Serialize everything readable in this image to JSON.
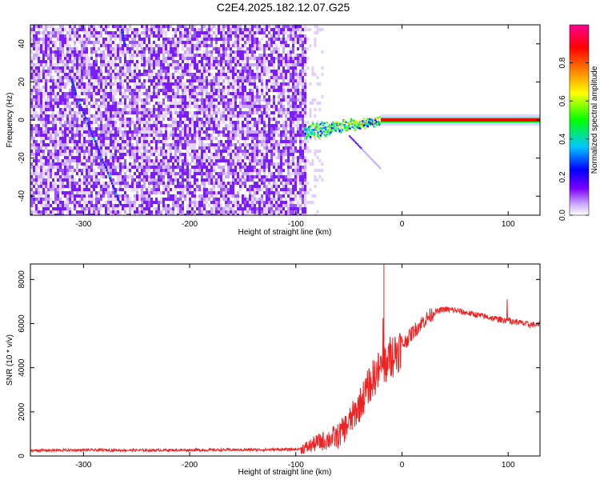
{
  "figure_title": "C2E4.2025.182.12.07.G25",
  "chart_data": [
    {
      "type": "heatmap",
      "title": "C2E4.2025.182.12.07.G25",
      "xlabel": "Height of straight line (km)",
      "ylabel": "Frequency (Hz)",
      "xlim": [
        -350,
        130
      ],
      "ylim": [
        -50,
        50
      ],
      "xticks": [
        -300,
        -200,
        -100,
        0,
        100
      ],
      "yticks": [
        -40,
        -20,
        0,
        20,
        40
      ],
      "colorbar": {
        "label": "Normalized spectral amplitude",
        "range": [
          0,
          1
        ],
        "ticks": [
          "0.0",
          "0.2",
          "0.4",
          "0.6",
          "0.8"
        ],
        "colormap": [
          "#ffffff",
          "#7b00ff",
          "#0000ff",
          "#00c8ff",
          "#00ff00",
          "#ffff00",
          "#ff8000",
          "#ff0000",
          "#ff0090"
        ]
      },
      "regions": [
        {
          "name": "noise",
          "x": [
            -350,
            -92
          ],
          "y": [
            -50,
            50
          ],
          "amplitude": 0.1
        },
        {
          "name": "fading-noise",
          "x": [
            -92,
            -75
          ],
          "y": [
            -50,
            50
          ],
          "amplitude": 0.03
        },
        {
          "name": "signal-onset",
          "x": [
            -92,
            0
          ],
          "y": [
            -6,
            2
          ],
          "amplitude": 0.45
        },
        {
          "name": "signal-steady",
          "x": [
            0,
            130
          ],
          "y": [
            -1,
            1
          ],
          "amplitude": 1.0
        }
      ]
    },
    {
      "type": "line",
      "xlabel": "Height of straight line (km)",
      "ylabel": "SNR (10 * v/v)",
      "xlim": [
        -350,
        130
      ],
      "ylim": [
        0,
        8700
      ],
      "xticks": [
        -300,
        -200,
        -100,
        0,
        100
      ],
      "yticks": [
        0,
        2000,
        4000,
        6000,
        8000
      ],
      "series": [
        {
          "color": "#ee2222",
          "points": [
            [
              -350,
              250
            ],
            [
              -300,
              270
            ],
            [
              -250,
              260
            ],
            [
              -200,
              270
            ],
            [
              -150,
              280
            ],
            [
              -100,
              300
            ],
            [
              -90,
              380
            ],
            [
              -80,
              600
            ],
            [
              -70,
              750
            ],
            [
              -60,
              900
            ],
            [
              -50,
              1500
            ],
            [
              -40,
              2300
            ],
            [
              -30,
              3300
            ],
            [
              -20,
              4000
            ],
            [
              -10,
              4500
            ],
            [
              0,
              5000
            ],
            [
              10,
              5600
            ],
            [
              20,
              6100
            ],
            [
              30,
              6500
            ],
            [
              40,
              6650
            ],
            [
              50,
              6600
            ],
            [
              60,
              6500
            ],
            [
              70,
              6400
            ],
            [
              80,
              6300
            ],
            [
              90,
              6200
            ],
            [
              100,
              6150
            ],
            [
              110,
              6050
            ],
            [
              120,
              5950
            ],
            [
              130,
              5950
            ]
          ]
        }
      ]
    }
  ]
}
